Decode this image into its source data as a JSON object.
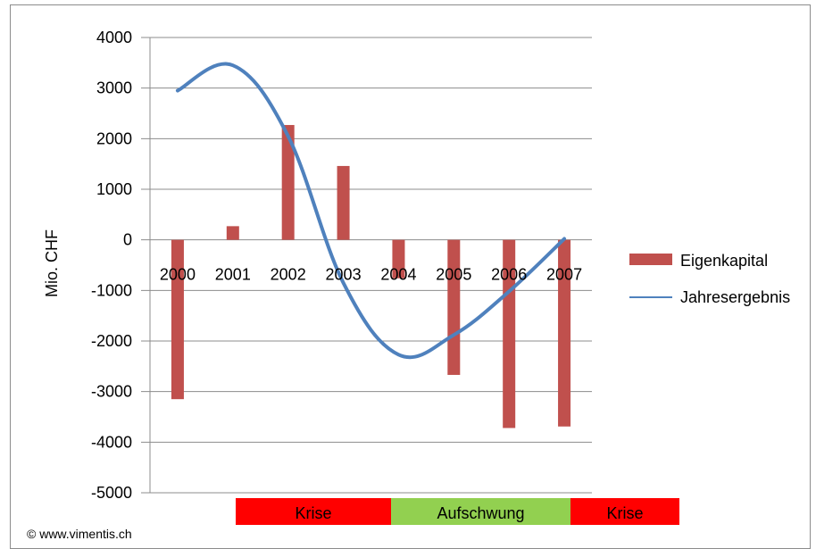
{
  "chart_data": {
    "type": "bar",
    "categories": [
      "2000",
      "2001",
      "2002",
      "2003",
      "2004",
      "2005",
      "2006",
      "2007"
    ],
    "series": [
      {
        "name": "Eigenkapital",
        "type": "bar",
        "color": "#c0504d",
        "values": [
          -3150,
          270,
          2270,
          1460,
          -760,
          -2670,
          -3720,
          -3690
        ]
      },
      {
        "name": "Jahresergebnis",
        "type": "line",
        "color": "#4f81bd",
        "values": [
          2950,
          3450,
          2050,
          -850,
          -2270,
          -1880,
          -1020,
          20
        ]
      }
    ],
    "ylabel": "Mio. CHF",
    "ylim": [
      -5000,
      4000
    ],
    "yticks": [
      4000,
      3000,
      2000,
      1000,
      0,
      -1000,
      -2000,
      -3000,
      -4000,
      -5000
    ],
    "grid": true,
    "legend_position": "right",
    "phases": [
      {
        "label": "Krise",
        "from": "2001",
        "to": "2003",
        "color": "#ff0000"
      },
      {
        "label": "Aufschwung",
        "from": "2004",
        "to": "2006",
        "color": "#92d050"
      },
      {
        "label": "Krise",
        "from": "2007",
        "to": "2007",
        "color": "#ff0000"
      }
    ]
  },
  "copyright": "© www.vimentis.ch"
}
